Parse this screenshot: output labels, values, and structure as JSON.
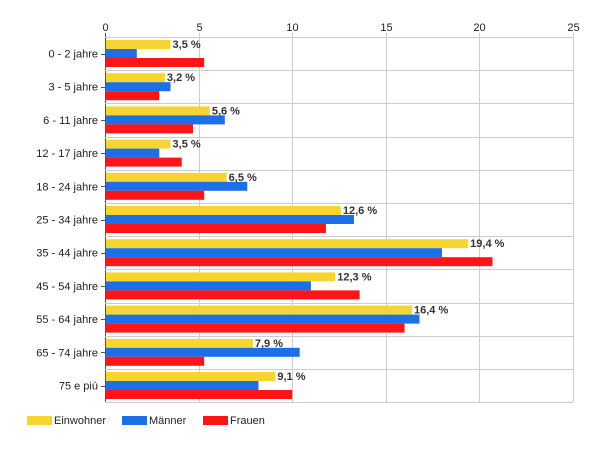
{
  "chart_data": {
    "type": "bar",
    "orientation": "horizontal",
    "categories": [
      "0 - 2 jahre",
      "3 - 5 jahre",
      "6 - 11 jahre",
      "12 - 17 jahre",
      "18 - 24 jahre",
      "25 - 34 jahre",
      "35 - 44 jahre",
      "45 - 54 jahre",
      "55 - 64 jahre",
      "65 - 74 jahre",
      "75 e più"
    ],
    "series": [
      {
        "name": "Einwohner",
        "color": "#f7d530",
        "values": [
          3.5,
          3.2,
          5.6,
          3.5,
          6.5,
          12.6,
          19.4,
          12.3,
          16.4,
          7.9,
          9.1
        ]
      },
      {
        "name": "Männer",
        "color": "#1c6fe6",
        "values": [
          1.7,
          3.5,
          6.4,
          2.9,
          7.6,
          13.3,
          18.0,
          11.0,
          16.8,
          10.4,
          8.2
        ]
      },
      {
        "name": "Frauen",
        "color": "#ff1515",
        "values": [
          5.3,
          2.9,
          4.7,
          4.1,
          5.3,
          11.8,
          20.7,
          13.6,
          16.0,
          5.3,
          10.0
        ]
      }
    ],
    "data_labels": [
      "3,5 %",
      "3,2 %",
      "5,6 %",
      "3,5 %",
      "6,5 %",
      "12,6 %",
      "19,4 %",
      "12,3 %",
      "16,4 %",
      "7,9 %",
      "9,1 %"
    ],
    "xlim": [
      0,
      25
    ],
    "x_ticks": [
      0,
      5,
      10,
      15,
      20,
      25
    ],
    "x_tick_labels": [
      "0",
      "5",
      "10",
      "15",
      "20",
      "25"
    ],
    "grid": true,
    "axis_position": "top",
    "legend_position": "bottom-left"
  }
}
